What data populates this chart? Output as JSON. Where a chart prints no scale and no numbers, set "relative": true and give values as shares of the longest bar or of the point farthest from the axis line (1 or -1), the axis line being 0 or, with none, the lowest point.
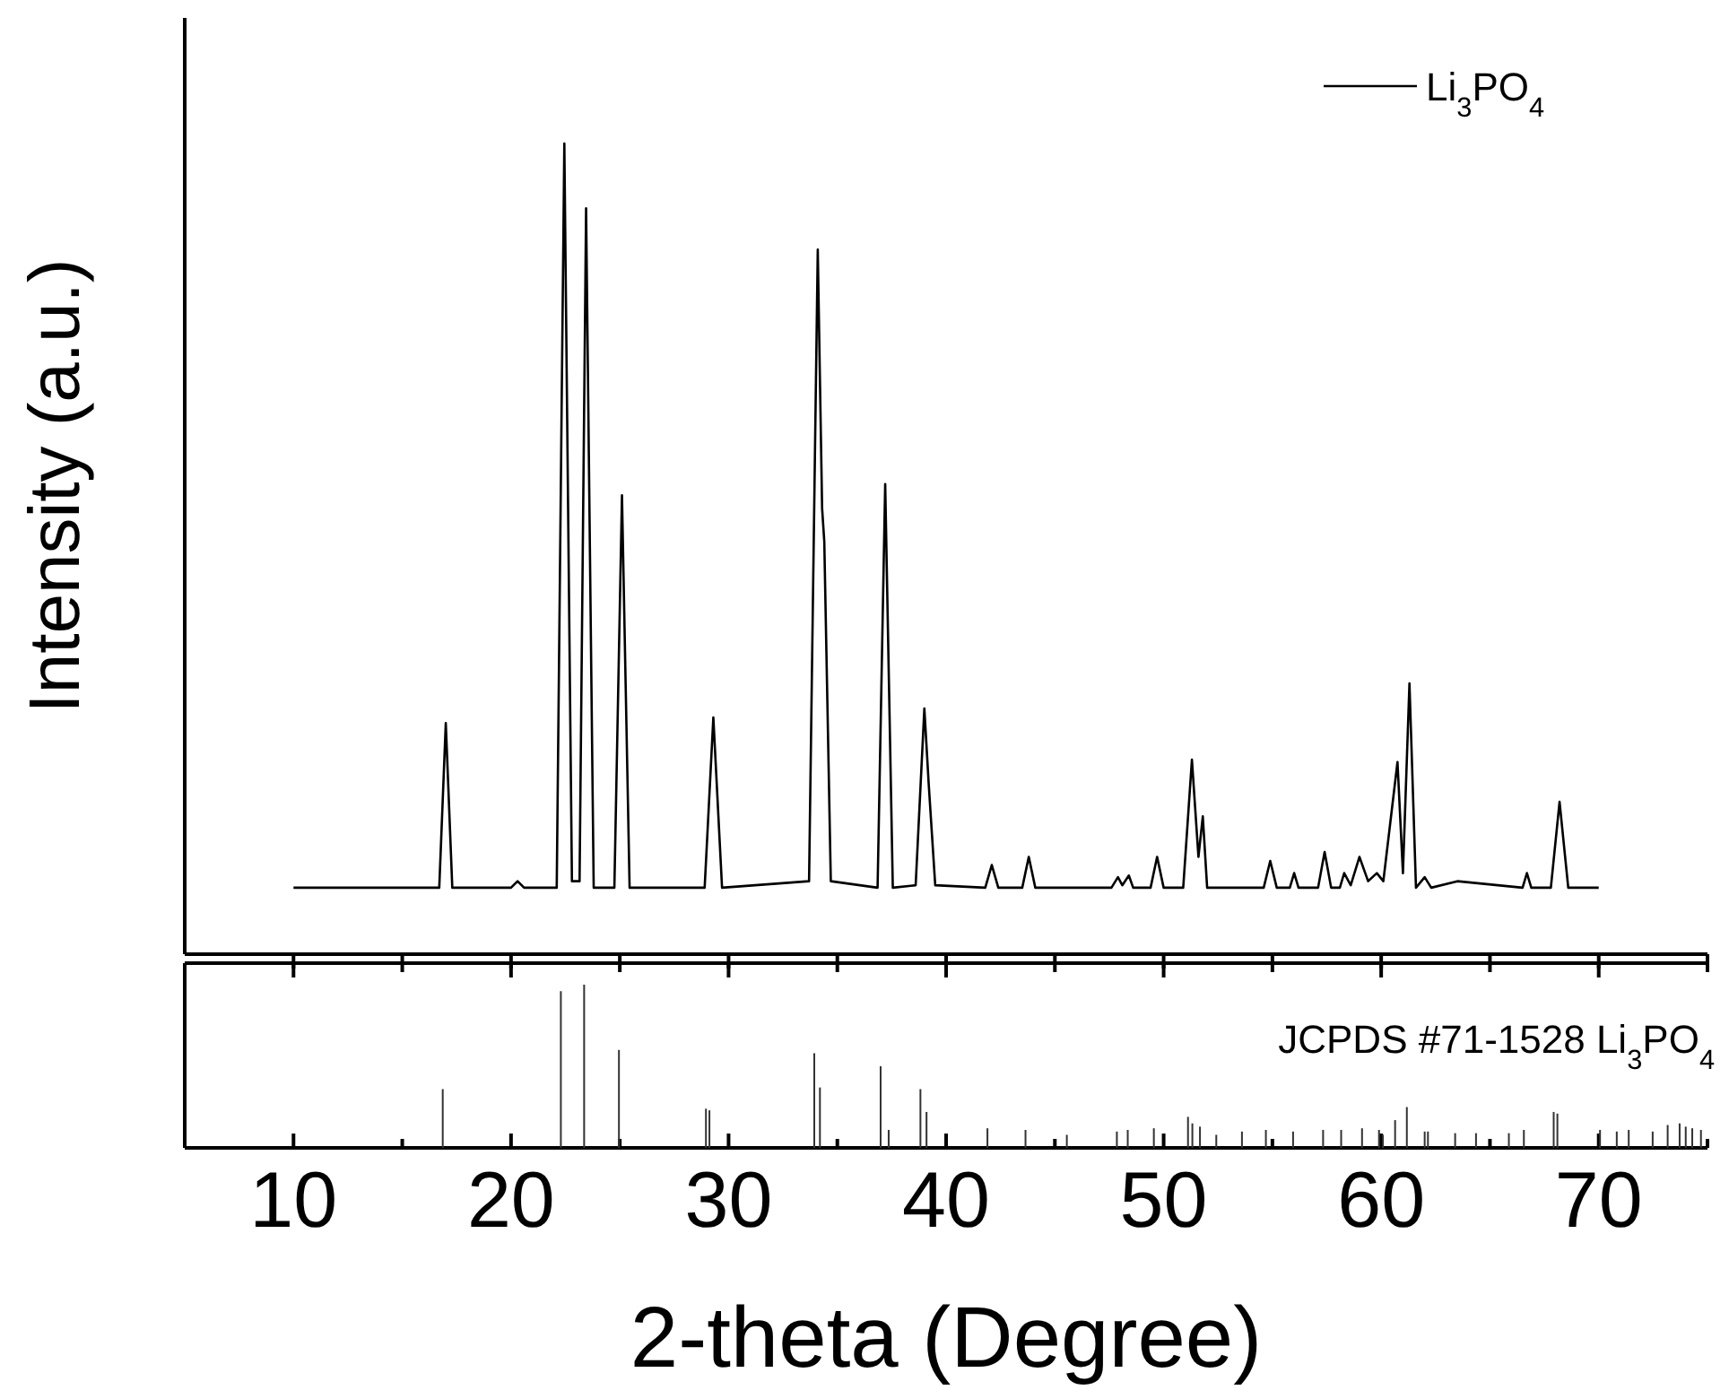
{
  "chart_data": [
    {
      "type": "line",
      "ylabel": "Intensity (a.u.)",
      "relative": true,
      "legend": "top right",
      "tick_labels": false,
      "xlim": [
        5,
        75
      ],
      "xticks": [
        10,
        {
          "value": 15,
          "label": null
        },
        20,
        {
          "value": 25,
          "label": null
        },
        30,
        {
          "value": 35,
          "label": null
        },
        40,
        {
          "value": 45,
          "label": null
        },
        50,
        {
          "value": 55,
          "label": null
        },
        60,
        {
          "value": 65,
          "label": null
        },
        70,
        {
          "value": 75,
          "label": null
        }
      ],
      "series": [
        {
          "name": "Li$_{3}$PO$_{4}$",
          "color": "#000000",
          "x": [
            10,
            16.7,
            17.0,
            17.3,
            20.0,
            20.3,
            20.6,
            22.1,
            22.45,
            22.8,
            23.15,
            23.45,
            23.8,
            24.75,
            25.1,
            25.45,
            28.9,
            29.3,
            29.7,
            33.7,
            34.1,
            34.3,
            34.4,
            34.7,
            36.85,
            37.2,
            37.55,
            38.6,
            39.0,
            39.2,
            39.5,
            41.8,
            42.1,
            42.4,
            43.5,
            43.8,
            44.1,
            47.6,
            47.9,
            48.1,
            48.4,
            48.6,
            49.4,
            49.7,
            50.0,
            50.9,
            51.3,
            51.6,
            51.8,
            52.0,
            54.6,
            54.9,
            55.2,
            55.8,
            56.0,
            56.2,
            57.1,
            57.4,
            57.7,
            58.1,
            58.3,
            58.6,
            59.0,
            59.4,
            59.8,
            60.1,
            60.75,
            61.0,
            61.3,
            61.6,
            62.0,
            62.3,
            63.5,
            66.5,
            66.7,
            66.9,
            67.8,
            68.2,
            68.6,
            70
          ],
          "values": [
            0.082,
            0.082,
            0.285,
            0.082,
            0.082,
            0.09,
            0.082,
            0.082,
            1.0,
            0.09,
            0.09,
            0.92,
            0.082,
            0.082,
            0.566,
            0.082,
            0.082,
            0.292,
            0.082,
            0.09,
            0.869,
            0.55,
            0.509,
            0.09,
            0.082,
            0.58,
            0.082,
            0.085,
            0.303,
            0.21,
            0.085,
            0.082,
            0.11,
            0.082,
            0.082,
            0.12,
            0.082,
            0.082,
            0.095,
            0.085,
            0.097,
            0.082,
            0.082,
            0.12,
            0.082,
            0.082,
            0.24,
            0.12,
            0.17,
            0.082,
            0.082,
            0.115,
            0.082,
            0.082,
            0.1,
            0.082,
            0.082,
            0.126,
            0.082,
            0.082,
            0.1,
            0.085,
            0.12,
            0.09,
            0.1,
            0.09,
            0.237,
            0.1,
            0.334,
            0.082,
            0.095,
            0.082,
            0.09,
            0.082,
            0.1,
            0.082,
            0.082,
            0.188,
            0.082,
            0.082
          ]
        }
      ]
    },
    {
      "type": "bar",
      "xlabel": "2-theta (Degree)",
      "relative": true,
      "tick_labels": "x",
      "annotations": [
        "JCPDS #71-1528  Li$_{3}$PO$_{4}$"
      ],
      "xlim": [
        5,
        75
      ],
      "xticks": [
        10,
        {
          "value": 15,
          "label": null
        },
        20,
        {
          "value": 25,
          "label": null
        },
        30,
        {
          "value": 35,
          "label": null
        },
        40,
        {
          "value": 45,
          "label": null
        },
        50,
        {
          "value": 55,
          "label": null
        },
        60,
        {
          "value": 65,
          "label": null
        },
        70,
        {
          "value": 75,
          "label": null
        }
      ],
      "series": [
        {
          "color": "#333333",
          "x": [
            16.86,
            22.29,
            23.36,
            24.96,
            28.96,
            29.12,
            33.94,
            34.2,
            36.99,
            37.36,
            38.82,
            39.1,
            41.9,
            43.65,
            45.55,
            47.85,
            48.35,
            49.55,
            51.12,
            51.32,
            51.67,
            52.42,
            53.6,
            54.7,
            55.95,
            57.33,
            58.16,
            59.12,
            59.9,
            60.08,
            60.64,
            61.18,
            62.0,
            62.15,
            63.4,
            64.36,
            65.87,
            66.56,
            67.93,
            68.1,
            70.06,
            70.83,
            71.38,
            72.48,
            73.17,
            73.72,
            74.0,
            74.3,
            74.7
          ],
          "values": [
            0.36,
            0.96,
            1,
            0.6,
            0.24,
            0.23,
            0.58,
            0.37,
            0.5,
            0.11,
            0.36,
            0.22,
            0.12,
            0.11,
            0.08,
            0.1,
            0.11,
            0.12,
            0.19,
            0.15,
            0.13,
            0.08,
            0.1,
            0.11,
            0.1,
            0.11,
            0.11,
            0.12,
            0.11,
            0.08,
            0.17,
            0.25,
            0.1,
            0.1,
            0.09,
            0.09,
            0.09,
            0.11,
            0.22,
            0.21,
            0.11,
            0.1,
            0.11,
            0.1,
            0.14,
            0.15,
            0.13,
            0.12,
            0.11
          ]
        }
      ]
    }
  ]
}
